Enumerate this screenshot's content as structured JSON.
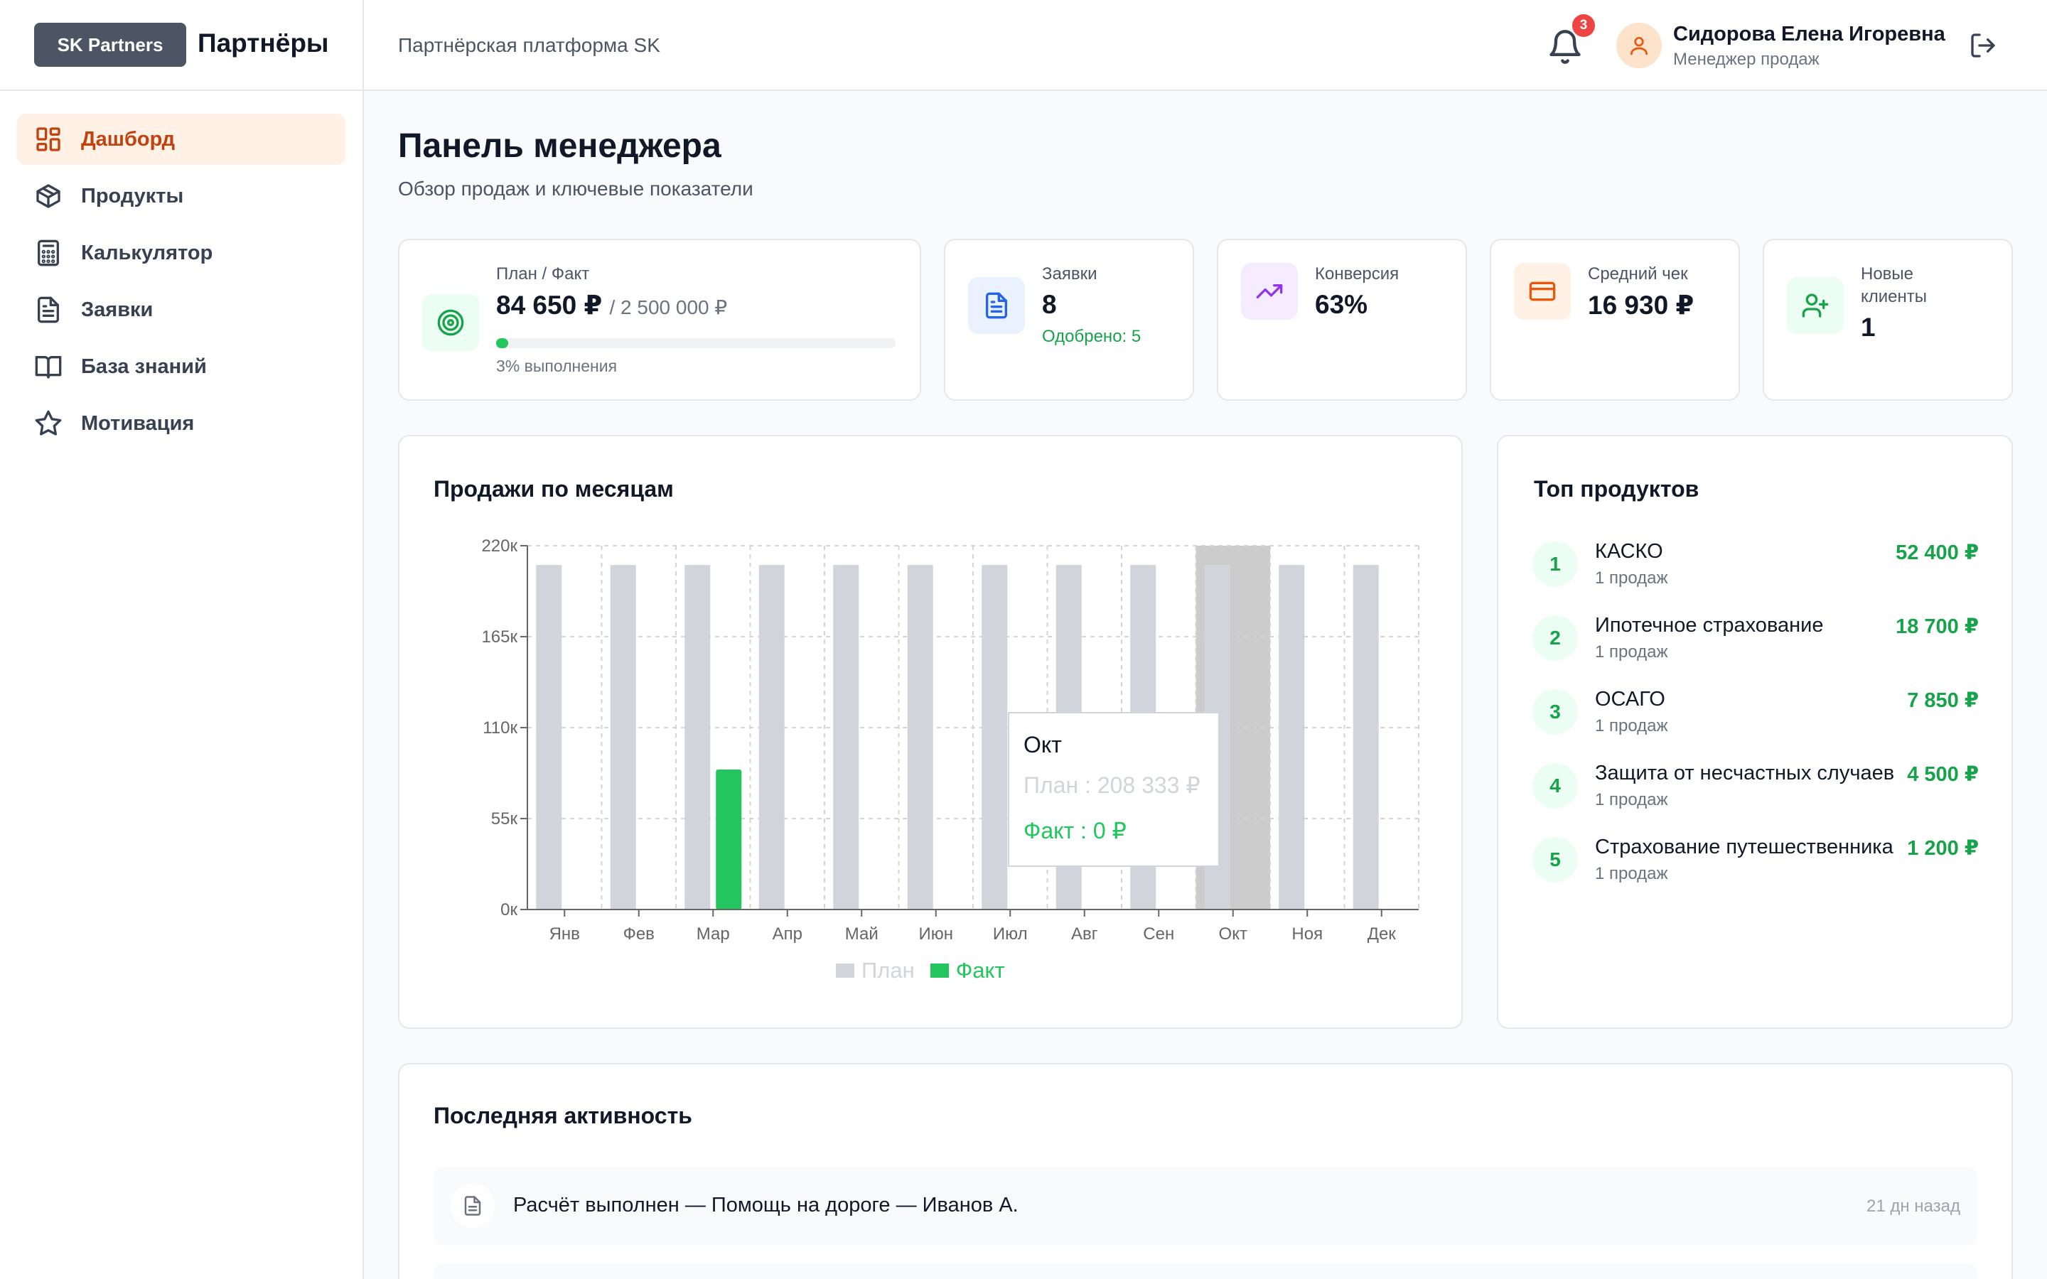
{
  "header": {
    "logo_badge": "SK Partners",
    "logo_name": "Партнёры",
    "platform_title": "Партнёрская платформа SK",
    "notifications_count": "3",
    "user_name": "Сидорова Елена Игоревна",
    "user_role": "Менеджер продаж"
  },
  "sidebar": {
    "items": [
      {
        "label": "Дашборд",
        "icon": "dashboard-icon",
        "active": true
      },
      {
        "label": "Продукты",
        "icon": "box-icon"
      },
      {
        "label": "Калькулятор",
        "icon": "calculator-icon"
      },
      {
        "label": "Заявки",
        "icon": "document-icon"
      },
      {
        "label": "База знаний",
        "icon": "book-icon"
      },
      {
        "label": "Мотивация",
        "icon": "star-icon"
      }
    ]
  },
  "page": {
    "title": "Панель менеджера",
    "subtitle": "Обзор продаж и ключевые показатели"
  },
  "stats": {
    "plan": {
      "label": "План / Факт",
      "value": "84 650 ₽",
      "target": "/ 2 500 000 ₽",
      "progress_percent": 3,
      "progress_text": "3% выполнения"
    },
    "requests": {
      "label": "Заявки",
      "value": "8",
      "approved": "Одобрено: 5"
    },
    "conversion": {
      "label": "Конверсия",
      "value": "63%"
    },
    "avg_check": {
      "label": "Средний чек",
      "value": "16 930 ₽"
    },
    "new_clients": {
      "label_line1": "Новые",
      "label_line2": "клиенты",
      "value": "1"
    }
  },
  "colors": {
    "accent": "#c2410c",
    "accent_bg": "#fff1e6",
    "plan_bar": "#d1d5db",
    "fact_bar": "#22c55e",
    "hover_band": "#cccccc"
  },
  "sales_chart": {
    "title": "Продажи по месяцам",
    "tooltip": {
      "month": "Окт",
      "plan": "План : 208 333 ₽",
      "fact": "Факт : 0 ₽"
    }
  },
  "chart_data": {
    "type": "bar",
    "categories": [
      "Янв",
      "Фев",
      "Мар",
      "Апр",
      "Май",
      "Июн",
      "Июл",
      "Авг",
      "Сен",
      "Окт",
      "Ноя",
      "Дек"
    ],
    "series": [
      {
        "name": "План",
        "values": [
          208333,
          208333,
          208333,
          208333,
          208333,
          208333,
          208333,
          208333,
          208333,
          208333,
          208333,
          208333
        ]
      },
      {
        "name": "Факт",
        "values": [
          0,
          0,
          84650,
          0,
          0,
          0,
          0,
          0,
          0,
          0,
          0,
          0
        ]
      }
    ],
    "ylim": [
      0,
      220000
    ],
    "yticks": [
      "0к",
      "55к",
      "110к",
      "165к",
      "220к"
    ],
    "highlighted_category": "Окт",
    "grid": true,
    "legend": "bottom"
  },
  "top_products": {
    "title": "Топ продуктов",
    "items": [
      {
        "rank": "1",
        "name": "КАСКО",
        "sales": "1 продаж",
        "amount": "52 400 ₽"
      },
      {
        "rank": "2",
        "name": "Ипотечное страхование",
        "sales": "1 продаж",
        "amount": "18 700 ₽"
      },
      {
        "rank": "3",
        "name": "ОСАГО",
        "sales": "1 продаж",
        "amount": "7 850 ₽"
      },
      {
        "rank": "4",
        "name": "Защита от несчастных случаев",
        "sales": "1 продаж",
        "amount": "4 500 ₽"
      },
      {
        "rank": "5",
        "name": "Страхование путешественника",
        "sales": "1 продаж",
        "amount": "1 200 ₽"
      }
    ]
  },
  "activity": {
    "title": "Последняя активность",
    "items": [
      {
        "text": "Расчёт выполнен — Помощь на дороге — Иванов А.",
        "time": "21 дн назад"
      }
    ]
  }
}
